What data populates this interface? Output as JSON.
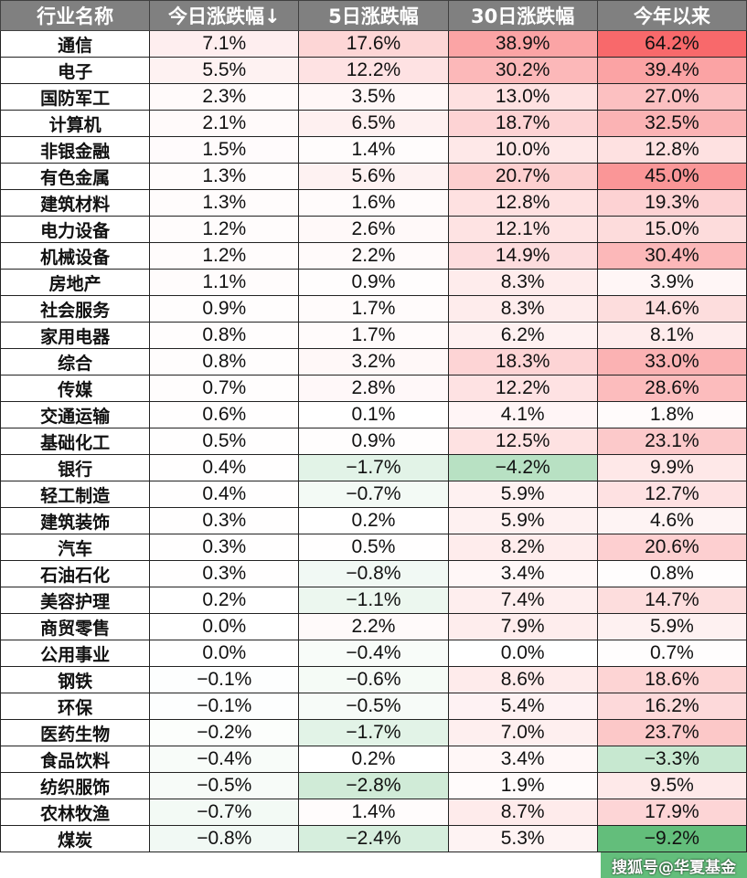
{
  "chart_data": {
    "type": "table",
    "columns": [
      "行业名称",
      "今日涨跌幅↓",
      "5日涨跌幅",
      "30日涨跌幅",
      "今年以来"
    ],
    "color_scale": {
      "min_color": "#63be7b",
      "mid_color": "#ffffff",
      "max_color": "#f8696b",
      "min": -9.2,
      "mid": 0,
      "max": 64.2
    },
    "rows": [
      [
        "通信",
        7.1,
        17.6,
        38.9,
        64.2
      ],
      [
        "电子",
        5.5,
        12.2,
        30.2,
        39.4
      ],
      [
        "国防军工",
        2.3,
        3.5,
        13.0,
        27.0
      ],
      [
        "计算机",
        2.1,
        6.5,
        18.7,
        32.5
      ],
      [
        "非银金融",
        1.5,
        1.4,
        10.0,
        12.8
      ],
      [
        "有色金属",
        1.3,
        5.6,
        20.7,
        45.0
      ],
      [
        "建筑材料",
        1.3,
        1.6,
        12.8,
        19.3
      ],
      [
        "电力设备",
        1.2,
        2.6,
        12.1,
        15.0
      ],
      [
        "机械设备",
        1.2,
        2.2,
        14.9,
        30.4
      ],
      [
        "房地产",
        1.1,
        0.9,
        8.3,
        3.9
      ],
      [
        "社会服务",
        0.9,
        1.7,
        8.3,
        14.6
      ],
      [
        "家用电器",
        0.8,
        1.7,
        6.2,
        8.1
      ],
      [
        "综合",
        0.8,
        3.2,
        18.3,
        33.0
      ],
      [
        "传媒",
        0.7,
        2.8,
        12.2,
        28.6
      ],
      [
        "交通运输",
        0.6,
        0.1,
        4.1,
        1.8
      ],
      [
        "基础化工",
        0.5,
        0.9,
        12.5,
        23.1
      ],
      [
        "银行",
        0.4,
        -1.7,
        -4.2,
        9.9
      ],
      [
        "轻工制造",
        0.4,
        -0.7,
        5.9,
        12.7
      ],
      [
        "建筑装饰",
        0.3,
        0.2,
        5.9,
        4.6
      ],
      [
        "汽车",
        0.3,
        0.5,
        8.2,
        20.6
      ],
      [
        "石油石化",
        0.3,
        -0.8,
        3.4,
        0.8
      ],
      [
        "美容护理",
        0.2,
        -1.1,
        7.4,
        14.7
      ],
      [
        "商贸零售",
        0.0,
        2.2,
        7.9,
        5.9
      ],
      [
        "公用事业",
        0.0,
        -0.4,
        0.0,
        0.7
      ],
      [
        "钢铁",
        -0.1,
        -0.6,
        8.6,
        18.6
      ],
      [
        "环保",
        -0.1,
        -0.5,
        5.4,
        16.2
      ],
      [
        "医药生物",
        -0.2,
        -1.7,
        7.0,
        23.7
      ],
      [
        "食品饮料",
        -0.4,
        0.2,
        3.4,
        -3.3
      ],
      [
        "纺织服饰",
        -0.5,
        -2.8,
        1.9,
        9.5
      ],
      [
        "农林牧渔",
        -0.7,
        1.4,
        8.7,
        17.9
      ],
      [
        "煤炭",
        -0.8,
        -2.4,
        5.3,
        -9.2
      ]
    ]
  },
  "watermark": "搜狐号@华夏基金"
}
